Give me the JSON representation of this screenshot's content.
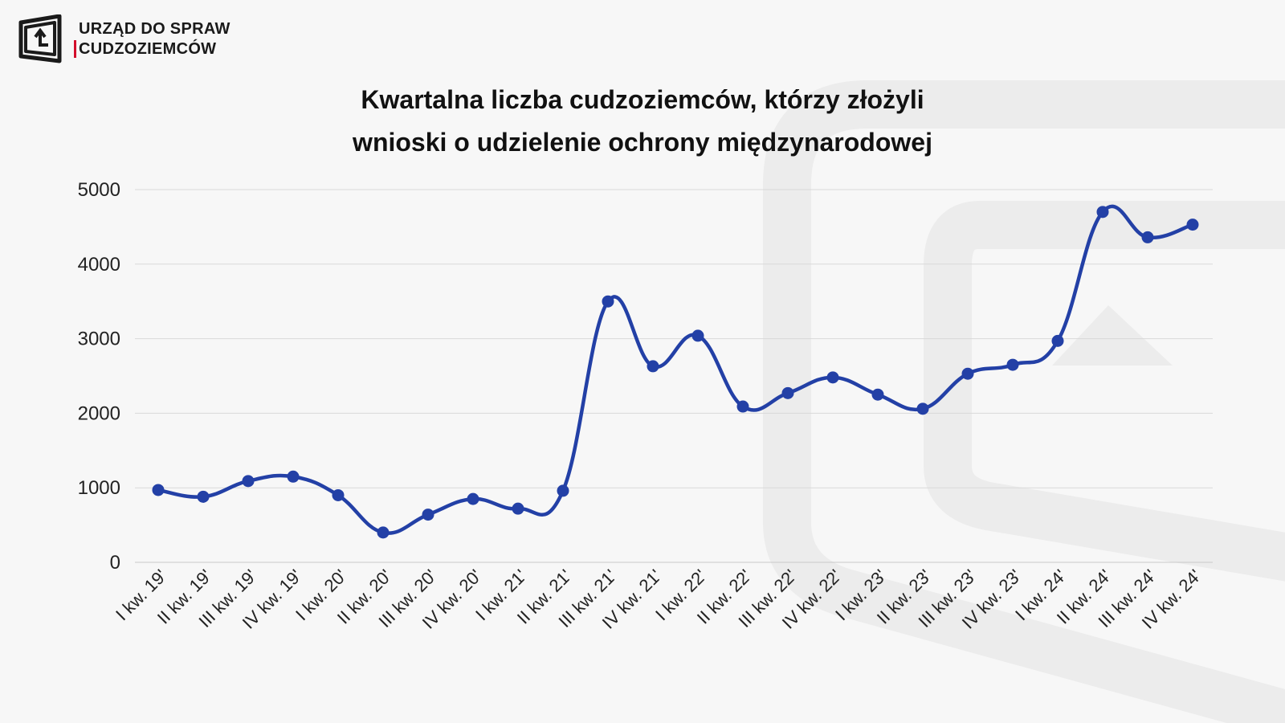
{
  "header": {
    "org_line1": "URZĄD DO SPRAW",
    "org_line2": "CUDZOZIEMCÓW",
    "title_line1": "Kwartalna liczba cudzoziemców, którzy złożyli",
    "title_line2": "wnioski o udzielenie ochrony międzynarodowej"
  },
  "icons": {
    "logo": "uds-logo-icon",
    "watermark": "uds-watermark-icon"
  },
  "colors": {
    "series": "#2340a6",
    "grid": "#d9d9d9",
    "text": "#222222",
    "accent": "#d40f2c"
  },
  "chart_data": {
    "type": "line",
    "title": "Kwartalna liczba cudzoziemców, którzy złożyli wnioski o udzielenie ochrony międzynarodowej",
    "xlabel": "",
    "ylabel": "",
    "ylim": [
      0,
      5000
    ],
    "yticks": [
      0,
      1000,
      2000,
      3000,
      4000,
      5000
    ],
    "grid": true,
    "legend": "none",
    "smooth": true,
    "categories": [
      "I kw. 19'",
      "II kw. 19'",
      "III kw. 19'",
      "IV kw. 19'",
      "I kw. 20'",
      "II kw. 20'",
      "III kw. 20'",
      "IV kw. 20'",
      "I kw. 21'",
      "II kw. 21'",
      "III kw. 21'",
      "IV kw. 21'",
      "I kw. 22'",
      "II kw. 22'",
      "III kw. 22'",
      "IV kw. 22'",
      "I kw. 23'",
      "II kw. 23'",
      "III kw. 23'",
      "IV kw. 23'",
      "I kw. 24'",
      "II kw. 24'",
      "III kw. 24'",
      "IV kw. 24'"
    ],
    "series": [
      {
        "values": [
          970,
          880,
          1090,
          1150,
          900,
          400,
          640,
          850,
          720,
          960,
          3500,
          2630,
          3040,
          2090,
          2270,
          2480,
          2250,
          2060,
          2530,
          2650,
          2970,
          4700,
          4360,
          4530
        ]
      }
    ]
  }
}
